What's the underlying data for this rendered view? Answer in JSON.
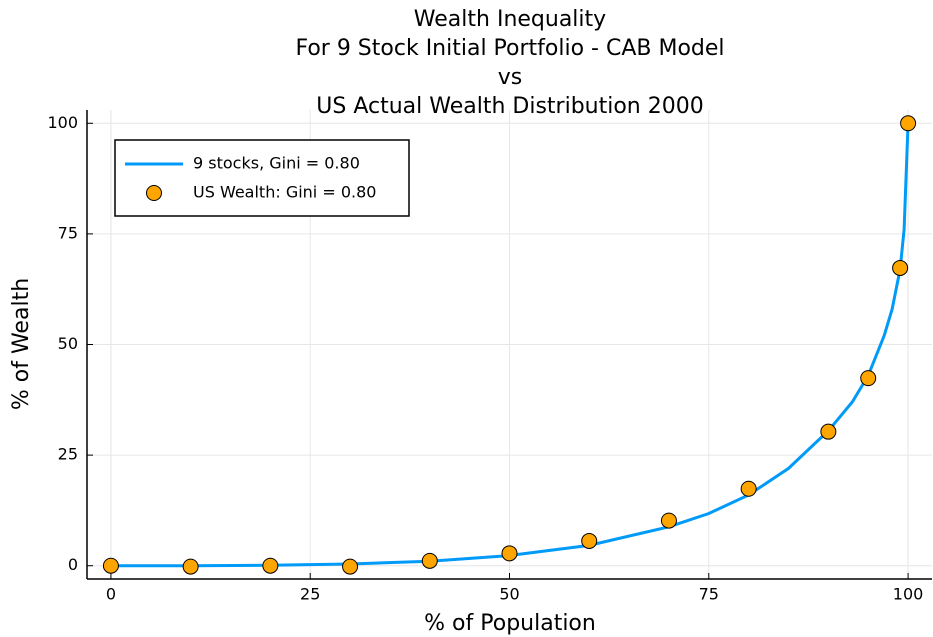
{
  "chart_data": {
    "type": "line_scatter",
    "title": [
      "Wealth Inequality",
      "For 9 Stock Initial Portfolio - CAB Model",
      "vs",
      "US Actual Wealth Distribution 2000"
    ],
    "x_label": "% of Population",
    "y_label": "% of Wealth",
    "xlim": [
      -3,
      103
    ],
    "ylim": [
      -3,
      103
    ],
    "xticks": [
      0,
      25,
      50,
      75,
      100
    ],
    "yticks": [
      0,
      25,
      50,
      75,
      100
    ],
    "grid": true,
    "legend_position": "top-left",
    "series": [
      {
        "name": "9 stocks, Gini = 0.80",
        "kind": "line",
        "color": "#009af9",
        "x": [
          0,
          10,
          20,
          30,
          40,
          50,
          60,
          70,
          75,
          80,
          85,
          90,
          93,
          95,
          97,
          98,
          99,
          99.5,
          100
        ],
        "values": [
          0,
          0,
          0.1,
          0.4,
          1.0,
          2.3,
          4.6,
          8.8,
          11.8,
          16,
          22,
          30.5,
          37,
          43,
          52,
          58,
          67,
          76,
          100
        ]
      },
      {
        "name": "US Wealth: Gini = 0.80",
        "kind": "scatter",
        "color": "#ffa500",
        "x": [
          0,
          10,
          20,
          30,
          40,
          50,
          60,
          70,
          80,
          90,
          95,
          99,
          100
        ],
        "values": [
          0,
          -0.2,
          0,
          -0.2,
          1.1,
          2.8,
          5.6,
          10.2,
          17.4,
          30.3,
          42.4,
          67.3,
          100
        ]
      }
    ]
  }
}
